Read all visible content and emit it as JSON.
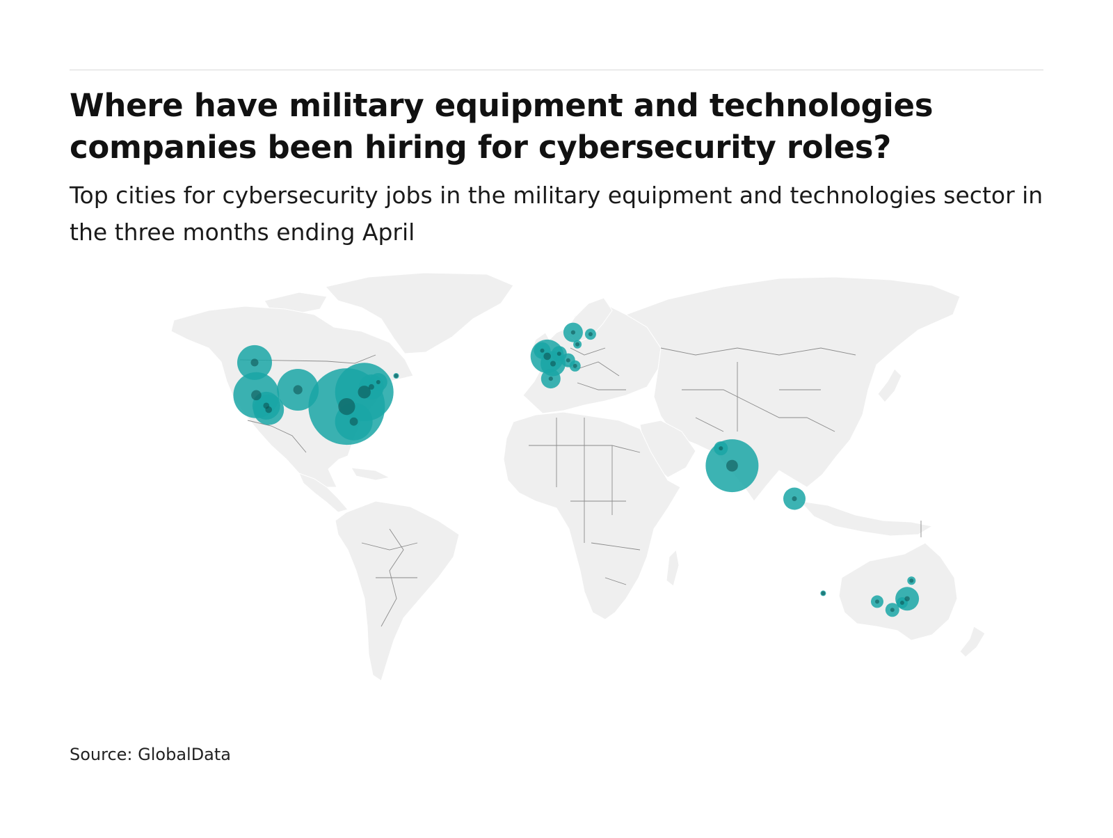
{
  "title": "Where have military equipment and technologies companies been hiring for cybersecurity roles?",
  "subtitle": "Top cities for cybersecurity jobs in the military equipment and technologies sector in the three months ending April",
  "source": "Source: GlobalData",
  "colors": {
    "land": "#efefef",
    "border": "#8a8a8a",
    "bubble": "#1aa6a6",
    "bubble_overlap": "#0b4d4d"
  },
  "chart_data": {
    "type": "bubble-map",
    "projection": "equirectangular",
    "grid": false,
    "legend": "none",
    "points": [
      {
        "lon": -123.1,
        "lat": 49.3,
        "value": 25
      },
      {
        "lon": -122.4,
        "lat": 37.8,
        "value": 33
      },
      {
        "lon": -118.2,
        "lat": 34.1,
        "value": 20
      },
      {
        "lon": -117.2,
        "lat": 32.7,
        "value": 22
      },
      {
        "lon": -104.9,
        "lat": 39.7,
        "value": 30
      },
      {
        "lon": -84.4,
        "lat": 33.8,
        "value": 55
      },
      {
        "lon": -81.4,
        "lat": 28.5,
        "value": 27
      },
      {
        "lon": -77.0,
        "lat": 38.9,
        "value": 42
      },
      {
        "lon": -74.0,
        "lat": 40.7,
        "value": 18
      },
      {
        "lon": -71.1,
        "lat": 42.4,
        "value": 13
      },
      {
        "lon": -63.6,
        "lat": 44.6,
        "value": 4
      },
      {
        "lon": -0.1,
        "lat": 51.5,
        "value": 24
      },
      {
        "lon": -2.2,
        "lat": 53.5,
        "value": 12
      },
      {
        "lon": 2.35,
        "lat": 48.9,
        "value": 18
      },
      {
        "lon": 4.9,
        "lat": 52.4,
        "value": 11
      },
      {
        "lon": 8.7,
        "lat": 50.1,
        "value": 10
      },
      {
        "lon": 11.6,
        "lat": 48.1,
        "value": 8
      },
      {
        "lon": 1.4,
        "lat": 43.6,
        "value": 14
      },
      {
        "lon": 10.8,
        "lat": 59.9,
        "value": 14
      },
      {
        "lon": 18.1,
        "lat": 59.3,
        "value": 8
      },
      {
        "lon": 12.6,
        "lat": 55.7,
        "value": 6
      },
      {
        "lon": 72.9,
        "lat": 19.1,
        "value": 10
      },
      {
        "lon": 77.6,
        "lat": 12.97,
        "value": 38
      },
      {
        "lon": 103.8,
        "lat": 1.35,
        "value": 16
      },
      {
        "lon": 151.2,
        "lat": -33.9,
        "value": 17
      },
      {
        "lon": 144.96,
        "lat": -37.8,
        "value": 10
      },
      {
        "lon": 138.6,
        "lat": -34.9,
        "value": 9
      },
      {
        "lon": 149.1,
        "lat": -35.3,
        "value": 8
      },
      {
        "lon": 153.0,
        "lat": -27.5,
        "value": 6
      },
      {
        "lon": 115.9,
        "lat": -31.95,
        "value": 4
      }
    ]
  }
}
